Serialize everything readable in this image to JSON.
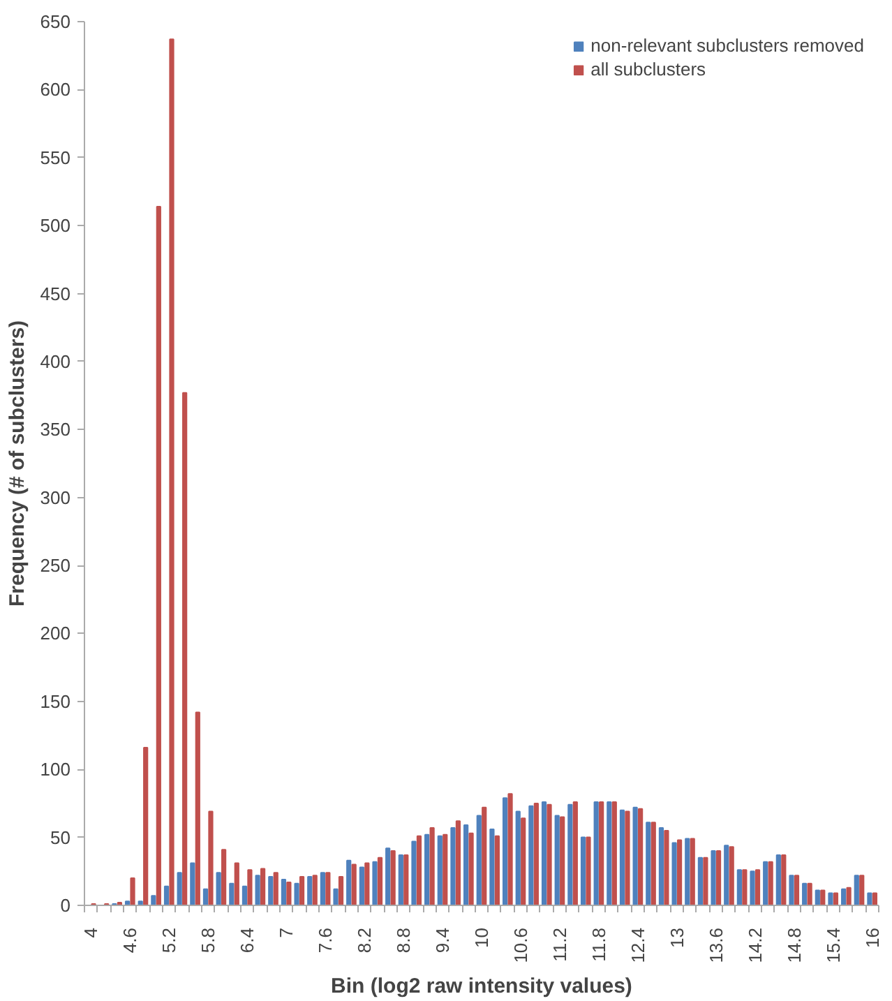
{
  "chart_data": {
    "type": "bar",
    "xlabel": "Bin (log2 raw intensity values)",
    "ylabel": "Frequency (# of subclusters)",
    "categories": [
      "4",
      null,
      null,
      "4.6",
      null,
      null,
      "5.2",
      null,
      null,
      "5.8",
      null,
      null,
      "6.4",
      null,
      null,
      "7",
      null,
      null,
      "7.6",
      null,
      null,
      "8.2",
      null,
      null,
      "8.8",
      null,
      null,
      "9.4",
      null,
      null,
      "10",
      null,
      null,
      "10.6",
      null,
      null,
      "11.2",
      null,
      null,
      "11.8",
      null,
      null,
      "12.4",
      null,
      null,
      "13",
      null,
      null,
      "13.6",
      null,
      null,
      "14.2",
      null,
      null,
      "14.8",
      null,
      null,
      "15.4",
      null,
      null,
      "16"
    ],
    "series": [
      {
        "name": "non-relevant subclusters removed",
        "color": "#4f81bd",
        "values": [
          0,
          0,
          1,
          3,
          3,
          7,
          14,
          24,
          31,
          12,
          24,
          16,
          14,
          22,
          21,
          19,
          16,
          21,
          24,
          12,
          33,
          28,
          32,
          42,
          37,
          47,
          52,
          51,
          57,
          59,
          66,
          56,
          79,
          69,
          73,
          76,
          66,
          74,
          50,
          76,
          76,
          70,
          72,
          61,
          57,
          46,
          49,
          35,
          40,
          44,
          26,
          25,
          32,
          37,
          22,
          16,
          11,
          9,
          12,
          22,
          9
        ]
      },
      {
        "name": "all subclusters",
        "color": "#c0504d",
        "values": [
          1,
          1,
          2,
          20,
          116,
          514,
          637,
          377,
          142,
          69,
          41,
          31,
          26,
          27,
          24,
          17,
          21,
          22,
          24,
          21,
          30,
          31,
          35,
          40,
          37,
          51,
          57,
          52,
          62,
          53,
          72,
          51,
          82,
          64,
          75,
          74,
          65,
          76,
          50,
          76,
          76,
          69,
          71,
          61,
          55,
          48,
          49,
          35,
          40,
          43,
          26,
          26,
          32,
          37,
          22,
          16,
          11,
          9,
          13,
          22,
          9
        ]
      }
    ],
    "ylim": [
      0,
      650
    ],
    "yticks": [
      0,
      50,
      100,
      150,
      200,
      250,
      300,
      350,
      400,
      450,
      500,
      550,
      600,
      650
    ],
    "grid": false,
    "legend": "top right"
  }
}
